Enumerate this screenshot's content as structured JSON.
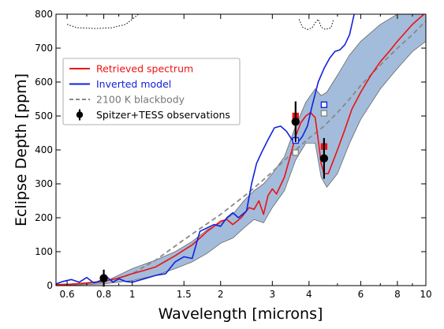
{
  "chart_data": {
    "type": "line",
    "xlabel": "Wavelength [microns]",
    "ylabel": "Eclipse Depth [ppm]",
    "xscale": "log",
    "xlim": [
      0.55,
      10
    ],
    "ylim": [
      0,
      800
    ],
    "x_ticks": [
      0.6,
      0.8,
      1,
      1.5,
      2,
      3,
      4,
      6,
      8,
      10
    ],
    "x_tick_labels": [
      "0.6",
      "0.8",
      "1",
      "1.5",
      "2",
      "3",
      "4",
      "6",
      "8",
      "10"
    ],
    "y_ticks": [
      0,
      100,
      200,
      300,
      400,
      500,
      600,
      700,
      800
    ],
    "y_tick_labels": [
      "0",
      "100",
      "200",
      "300",
      "400",
      "500",
      "600",
      "700",
      "800"
    ],
    "legend_position": "upper-left",
    "colors": {
      "retrieved": "#ee1111",
      "inverted": "#1122dd",
      "blackbody": "#888888",
      "observations": "#000000",
      "band_fill": "#a3bcdb",
      "band_edge": "#666666"
    },
    "series": [
      {
        "name": "Retrieved spectrum",
        "style": "solid",
        "points": [
          [
            0.55,
            3
          ],
          [
            0.62,
            4
          ],
          [
            0.7,
            8
          ],
          [
            0.8,
            13
          ],
          [
            0.9,
            22
          ],
          [
            1.0,
            35
          ],
          [
            1.1,
            45
          ],
          [
            1.2,
            55
          ],
          [
            1.3,
            72
          ],
          [
            1.4,
            88
          ],
          [
            1.5,
            105
          ],
          [
            1.6,
            120
          ],
          [
            1.7,
            140
          ],
          [
            1.8,
            160
          ],
          [
            1.9,
            175
          ],
          [
            2.0,
            190
          ],
          [
            2.1,
            195
          ],
          [
            2.2,
            180
          ],
          [
            2.35,
            200
          ],
          [
            2.5,
            230
          ],
          [
            2.6,
            225
          ],
          [
            2.7,
            250
          ],
          [
            2.8,
            210
          ],
          [
            2.9,
            265
          ],
          [
            3.0,
            285
          ],
          [
            3.1,
            270
          ],
          [
            3.3,
            320
          ],
          [
            3.45,
            380
          ],
          [
            3.6,
            440
          ],
          [
            3.75,
            480
          ],
          [
            3.9,
            500
          ],
          [
            4.05,
            510
          ],
          [
            4.2,
            495
          ],
          [
            4.3,
            430
          ],
          [
            4.4,
            360
          ],
          [
            4.5,
            330
          ],
          [
            4.65,
            330
          ],
          [
            4.8,
            360
          ],
          [
            5.0,
            400
          ],
          [
            5.3,
            460
          ],
          [
            5.6,
            520
          ],
          [
            6.0,
            570
          ],
          [
            6.5,
            620
          ],
          [
            7.0,
            660
          ],
          [
            7.5,
            690
          ],
          [
            8.0,
            720
          ],
          [
            9.0,
            770
          ],
          [
            10.0,
            805
          ]
        ]
      },
      {
        "name": "Inverted model",
        "style": "solid",
        "points": [
          [
            0.55,
            5
          ],
          [
            0.58,
            12
          ],
          [
            0.62,
            18
          ],
          [
            0.66,
            10
          ],
          [
            0.7,
            24
          ],
          [
            0.74,
            8
          ],
          [
            0.78,
            15
          ],
          [
            0.82,
            25
          ],
          [
            0.86,
            10
          ],
          [
            0.9,
            20
          ],
          [
            0.95,
            12
          ],
          [
            1.0,
            10
          ],
          [
            1.1,
            20
          ],
          [
            1.2,
            30
          ],
          [
            1.3,
            35
          ],
          [
            1.4,
            70
          ],
          [
            1.5,
            85
          ],
          [
            1.6,
            80
          ],
          [
            1.7,
            160
          ],
          [
            1.8,
            170
          ],
          [
            1.9,
            180
          ],
          [
            2.0,
            175
          ],
          [
            2.1,
            200
          ],
          [
            2.2,
            215
          ],
          [
            2.3,
            200
          ],
          [
            2.45,
            220
          ],
          [
            2.55,
            300
          ],
          [
            2.65,
            360
          ],
          [
            2.75,
            390
          ],
          [
            2.9,
            430
          ],
          [
            3.05,
            465
          ],
          [
            3.2,
            470
          ],
          [
            3.35,
            455
          ],
          [
            3.5,
            430
          ],
          [
            3.65,
            420
          ],
          [
            3.8,
            440
          ],
          [
            3.95,
            470
          ],
          [
            4.1,
            530
          ],
          [
            4.3,
            600
          ],
          [
            4.5,
            640
          ],
          [
            4.7,
            670
          ],
          [
            4.9,
            690
          ],
          [
            5.1,
            695
          ],
          [
            5.3,
            710
          ],
          [
            5.5,
            740
          ],
          [
            5.7,
            800
          ],
          [
            5.8,
            830
          ]
        ]
      },
      {
        "name": "2100 K blackbody",
        "style": "dashed",
        "points": [
          [
            0.55,
            0
          ],
          [
            0.8,
            10
          ],
          [
            1.0,
            35
          ],
          [
            1.2,
            75
          ],
          [
            1.5,
            135
          ],
          [
            2.0,
            210
          ],
          [
            2.5,
            275
          ],
          [
            3.0,
            335
          ],
          [
            3.5,
            390
          ],
          [
            4.0,
            435
          ],
          [
            4.5,
            470
          ],
          [
            5.0,
            510
          ],
          [
            5.5,
            550
          ],
          [
            6.0,
            590
          ],
          [
            7.0,
            650
          ],
          [
            8.0,
            700
          ],
          [
            9.0,
            740
          ],
          [
            10.0,
            780
          ]
        ]
      }
    ],
    "uncertainty_band": {
      "lower": [
        [
          0.55,
          0
        ],
        [
          0.8,
          5
        ],
        [
          1.0,
          15
        ],
        [
          1.2,
          30
        ],
        [
          1.4,
          50
        ],
        [
          1.6,
          70
        ],
        [
          1.8,
          95
        ],
        [
          2.0,
          125
        ],
        [
          2.2,
          140
        ],
        [
          2.4,
          170
        ],
        [
          2.6,
          195
        ],
        [
          2.8,
          185
        ],
        [
          3.0,
          230
        ],
        [
          3.3,
          280
        ],
        [
          3.6,
          370
        ],
        [
          3.9,
          420
        ],
        [
          4.2,
          420
        ],
        [
          4.4,
          320
        ],
        [
          4.6,
          290
        ],
        [
          5.0,
          330
        ],
        [
          5.5,
          420
        ],
        [
          6.0,
          490
        ],
        [
          7.0,
          580
        ],
        [
          8.0,
          640
        ],
        [
          9.0,
          690
        ],
        [
          10.0,
          720
        ]
      ],
      "upper": [
        [
          0.55,
          3
        ],
        [
          0.8,
          10
        ],
        [
          1.0,
          50
        ],
        [
          1.2,
          75
        ],
        [
          1.4,
          100
        ],
        [
          1.6,
          130
        ],
        [
          1.8,
          165
        ],
        [
          2.0,
          185
        ],
        [
          2.2,
          210
        ],
        [
          2.4,
          250
        ],
        [
          2.6,
          280
        ],
        [
          2.8,
          300
        ],
        [
          3.0,
          330
        ],
        [
          3.3,
          380
        ],
        [
          3.6,
          470
        ],
        [
          3.9,
          540
        ],
        [
          4.2,
          580
        ],
        [
          4.4,
          560
        ],
        [
          4.6,
          570
        ],
        [
          5.0,
          620
        ],
        [
          5.5,
          680
        ],
        [
          6.0,
          720
        ],
        [
          7.0,
          770
        ],
        [
          8.0,
          800
        ],
        [
          9.0,
          810
        ],
        [
          10.0,
          810
        ]
      ]
    },
    "dotted_curves": [
      [
        [
          0.6,
          770
        ],
        [
          0.65,
          760
        ],
        [
          0.75,
          758
        ],
        [
          0.85,
          760
        ],
        [
          0.95,
          770
        ],
        [
          1.0,
          785
        ],
        [
          1.05,
          800
        ]
      ],
      [
        [
          3.7,
          785
        ],
        [
          3.8,
          762
        ],
        [
          3.95,
          755
        ],
        [
          4.1,
          760
        ],
        [
          4.2,
          775
        ],
        [
          4.3,
          785
        ],
        [
          4.4,
          762
        ],
        [
          4.55,
          755
        ],
        [
          4.75,
          760
        ],
        [
          4.85,
          785
        ]
      ]
    ],
    "observations": [
      {
        "x": 0.8,
        "y": 22,
        "yerr": 25
      },
      {
        "x": 3.6,
        "y": 483,
        "yerr": 60
      },
      {
        "x": 4.5,
        "y": 375,
        "yerr": 60
      }
    ],
    "model_squares": [
      {
        "series": "Retrieved spectrum",
        "x": 3.6,
        "y": 500,
        "filled": true
      },
      {
        "series": "Retrieved spectrum",
        "x": 4.5,
        "y": 410,
        "filled": true
      },
      {
        "series": "Inverted model",
        "x": 3.6,
        "y": 428,
        "filled": false
      },
      {
        "series": "Inverted model",
        "x": 4.5,
        "y": 533,
        "filled": false
      },
      {
        "series": "2100 K blackbody",
        "x": 3.6,
        "y": 392,
        "filled": false
      },
      {
        "series": "2100 K blackbody",
        "x": 4.5,
        "y": 508,
        "filled": false
      }
    ],
    "legend": [
      {
        "label": "Retrieved spectrum",
        "kind": "line",
        "color": "#ee1111",
        "text_color": "#ee1111"
      },
      {
        "label": "Inverted model",
        "kind": "line",
        "color": "#1122dd",
        "text_color": "#1122dd"
      },
      {
        "label": "2100 K blackbody",
        "kind": "dashed",
        "color": "#888888",
        "text_color": "#777777"
      },
      {
        "label": "Spitzer+TESS observations",
        "kind": "errorbar",
        "color": "#000000",
        "text_color": "#000000"
      }
    ]
  }
}
